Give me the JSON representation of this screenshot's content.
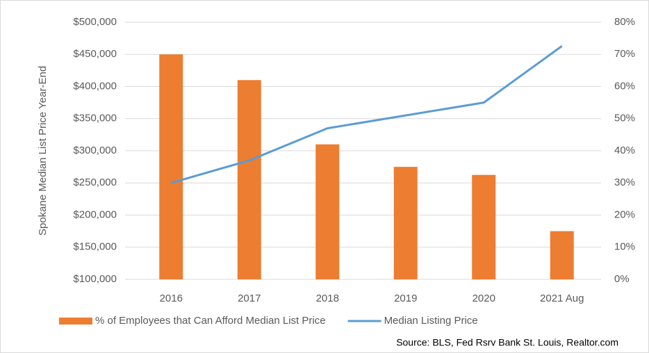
{
  "chart_data": {
    "type": "bar",
    "y_label": "Spokane Median List Price Year-End",
    "source": "Source: BLS, Fed Rsrv Bank St. Louis, Realtor.com",
    "categories": [
      "2016",
      "2017",
      "2018",
      "2019",
      "2020",
      "2021 Aug"
    ],
    "series": [
      {
        "name": "% of Employees that Can Afford Median List Price",
        "type": "bar",
        "axis": "y2",
        "color": "#ed7d31",
        "values": [
          70,
          62,
          42,
          35,
          32.5,
          15
        ]
      },
      {
        "name": "Median Listing Price",
        "type": "line",
        "axis": "y",
        "color": "#5b9bd5",
        "values": [
          250000,
          285000,
          335000,
          355000,
          375000,
          463000
        ]
      }
    ],
    "ylim": [
      100000,
      500000
    ],
    "yticks": [
      {
        "value": 100000,
        "label": "$100,000"
      },
      {
        "value": 150000,
        "label": "$150,000"
      },
      {
        "value": 200000,
        "label": "$200,000"
      },
      {
        "value": 250000,
        "label": "$250,000"
      },
      {
        "value": 300000,
        "label": "$300,000"
      },
      {
        "value": 350000,
        "label": "$350,000"
      },
      {
        "value": 400000,
        "label": "$400,000"
      },
      {
        "value": 450000,
        "label": "$450,000"
      },
      {
        "value": 500000,
        "label": "$500,000"
      }
    ],
    "y2lim": [
      0,
      80
    ],
    "y2ticks": [
      {
        "value": 0,
        "label": "0%"
      },
      {
        "value": 10,
        "label": "10%"
      },
      {
        "value": 20,
        "label": "20%"
      },
      {
        "value": 30,
        "label": "30%"
      },
      {
        "value": 40,
        "label": "40%"
      },
      {
        "value": 50,
        "label": "50%"
      },
      {
        "value": 60,
        "label": "60%"
      },
      {
        "value": 70,
        "label": "70%"
      },
      {
        "value": 80,
        "label": "80%"
      }
    ],
    "grid": true,
    "legend": "bottom"
  }
}
